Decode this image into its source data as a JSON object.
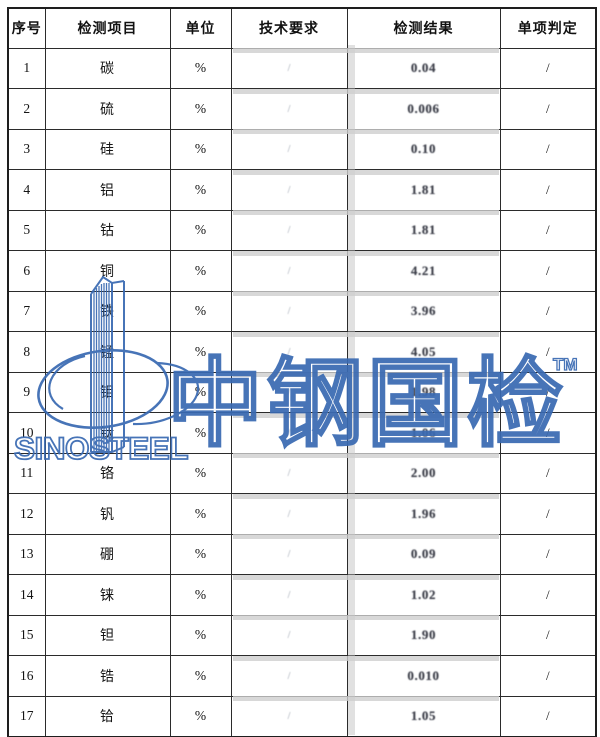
{
  "table": {
    "headers": [
      "序号",
      "检测项目",
      "单位",
      "技术要求",
      "检测结果",
      "单项判定"
    ],
    "rows": [
      {
        "no": "1",
        "item": "碳",
        "unit": "%",
        "requirement": "/",
        "result": "0.04",
        "judgment": "/"
      },
      {
        "no": "2",
        "item": "硫",
        "unit": "%",
        "requirement": "/",
        "result": "0.006",
        "judgment": "/"
      },
      {
        "no": "3",
        "item": "硅",
        "unit": "%",
        "requirement": "/",
        "result": "0.10",
        "judgment": "/"
      },
      {
        "no": "4",
        "item": "铝",
        "unit": "%",
        "requirement": "/",
        "result": "1.81",
        "judgment": "/"
      },
      {
        "no": "5",
        "item": "钴",
        "unit": "%",
        "requirement": "/",
        "result": "1.81",
        "judgment": "/"
      },
      {
        "no": "6",
        "item": "铜",
        "unit": "%",
        "requirement": "/",
        "result": "4.21",
        "judgment": "/"
      },
      {
        "no": "7",
        "item": "铁",
        "unit": "%",
        "requirement": "/",
        "result": "3.96",
        "judgment": "/"
      },
      {
        "no": "8",
        "item": "锰",
        "unit": "%",
        "requirement": "/",
        "result": "4.05",
        "judgment": "/"
      },
      {
        "no": "9",
        "item": "钼",
        "unit": "%",
        "requirement": "/",
        "result": "1.98",
        "judgment": "/"
      },
      {
        "no": "10",
        "item": "钛",
        "unit": "%",
        "requirement": "/",
        "result": "1.06",
        "judgment": "/"
      },
      {
        "no": "11",
        "item": "铬",
        "unit": "%",
        "requirement": "/",
        "result": "2.00",
        "judgment": "/"
      },
      {
        "no": "12",
        "item": "钒",
        "unit": "%",
        "requirement": "/",
        "result": "1.96",
        "judgment": "/"
      },
      {
        "no": "13",
        "item": "硼",
        "unit": "%",
        "requirement": "/",
        "result": "0.09",
        "judgment": "/"
      },
      {
        "no": "14",
        "item": "铼",
        "unit": "%",
        "requirement": "/",
        "result": "1.02",
        "judgment": "/"
      },
      {
        "no": "15",
        "item": "钽",
        "unit": "%",
        "requirement": "/",
        "result": "1.90",
        "judgment": "/"
      },
      {
        "no": "16",
        "item": "锆",
        "unit": "%",
        "requirement": "/",
        "result": "0.010",
        "judgment": "/"
      },
      {
        "no": "17",
        "item": "铪",
        "unit": "%",
        "requirement": "/",
        "result": "1.05",
        "judgment": "/"
      }
    ]
  },
  "watermark": {
    "brand": "SINOSTEEL",
    "cjk_text": "中钢国检",
    "trademark": "TM",
    "color": "#3a6ab2"
  }
}
